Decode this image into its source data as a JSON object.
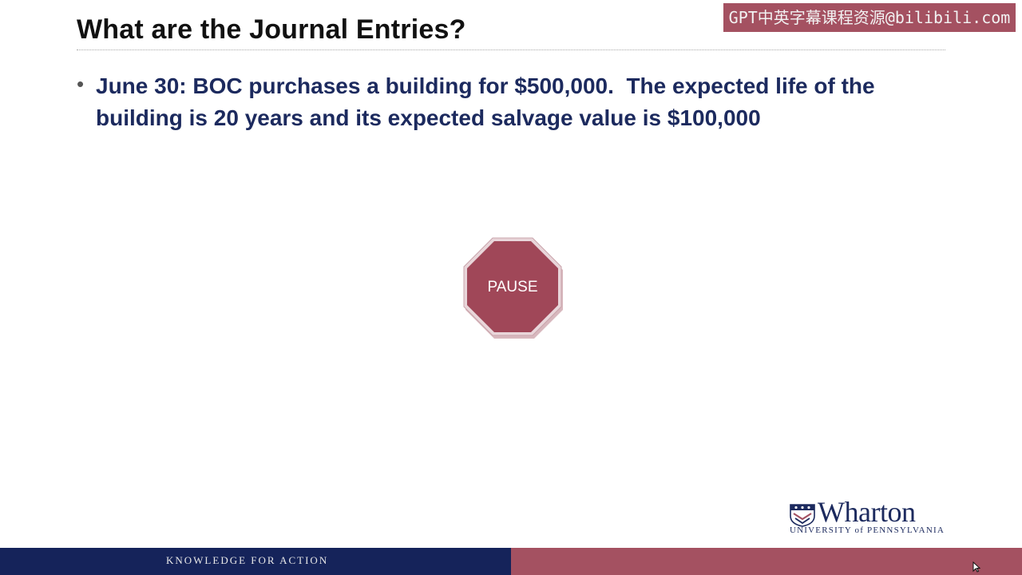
{
  "slide": {
    "title": "What are the Journal Entries?",
    "watermark": "GPT中英字幕课程资源@bilibili.com",
    "bullets": [
      {
        "marker": "•",
        "text": "June 30: BOC purchases a building for $500,000.  The expected life of the building is 20 years and its expected salvage value is $100,000"
      }
    ],
    "stop_sign": {
      "label": "PAUSE",
      "color": "#a04758"
    }
  },
  "logo": {
    "name": "Wharton",
    "subtitle": "UNIVERSITY of PENNSYLVANIA",
    "icon": "penn-shield-icon"
  },
  "footer": {
    "tagline": "KNOWLEDGE FOR ACTION",
    "left_color": "#15235a",
    "right_color": "#a45161"
  }
}
